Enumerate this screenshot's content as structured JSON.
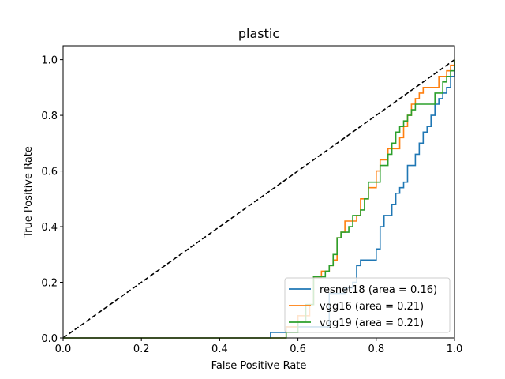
{
  "chart_data": {
    "type": "line",
    "title": "plastic",
    "xlabel": "False Positive Rate",
    "ylabel": "True Positive Rate",
    "xlim": [
      0.0,
      1.0
    ],
    "ylim": [
      0.0,
      1.05
    ],
    "xticks": [
      "0.0",
      "0.2",
      "0.4",
      "0.6",
      "0.8",
      "1.0"
    ],
    "yticks": [
      "0.0",
      "0.2",
      "0.4",
      "0.6",
      "0.8",
      "1.0"
    ],
    "legend_position": "bottom-right",
    "grid": false,
    "diagonal": {
      "x": [
        0,
        1
      ],
      "y": [
        0,
        1
      ],
      "color": "#000000",
      "style": "dashed"
    },
    "series": [
      {
        "name": "resnet18 (area = 0.16)",
        "color": "#1f77b4",
        "x": [
          0,
          0.53,
          0.53,
          0.57,
          0.57,
          0.68,
          0.68,
          0.72,
          0.72,
          0.74,
          0.74,
          0.75,
          0.75,
          0.76,
          0.76,
          0.8,
          0.8,
          0.81,
          0.81,
          0.82,
          0.82,
          0.84,
          0.84,
          0.85,
          0.85,
          0.86,
          0.86,
          0.87,
          0.87,
          0.88,
          0.88,
          0.9,
          0.9,
          0.91,
          0.91,
          0.92,
          0.92,
          0.93,
          0.93,
          0.94,
          0.94,
          0.95,
          0.95,
          0.96,
          0.96,
          0.97,
          0.97,
          0.98,
          0.98,
          0.99,
          0.99,
          1.0,
          1.0
        ],
        "y": [
          0,
          0,
          0.02,
          0.02,
          0.04,
          0.04,
          0.16,
          0.16,
          0.18,
          0.18,
          0.2,
          0.2,
          0.26,
          0.26,
          0.28,
          0.28,
          0.32,
          0.32,
          0.4,
          0.4,
          0.44,
          0.44,
          0.48,
          0.48,
          0.52,
          0.52,
          0.54,
          0.54,
          0.56,
          0.56,
          0.62,
          0.62,
          0.66,
          0.66,
          0.7,
          0.7,
          0.74,
          0.74,
          0.76,
          0.76,
          0.8,
          0.8,
          0.84,
          0.84,
          0.86,
          0.86,
          0.88,
          0.88,
          0.9,
          0.9,
          0.94,
          0.94,
          1.0
        ]
      },
      {
        "name": "vgg16 (area = 0.21)",
        "color": "#ff7f0e",
        "x": [
          0,
          0.57,
          0.57,
          0.6,
          0.6,
          0.63,
          0.63,
          0.64,
          0.64,
          0.66,
          0.66,
          0.68,
          0.68,
          0.69,
          0.69,
          0.7,
          0.7,
          0.71,
          0.71,
          0.72,
          0.72,
          0.75,
          0.75,
          0.76,
          0.76,
          0.78,
          0.78,
          0.8,
          0.8,
          0.81,
          0.81,
          0.83,
          0.83,
          0.86,
          0.86,
          0.87,
          0.87,
          0.88,
          0.88,
          0.89,
          0.89,
          0.9,
          0.9,
          0.91,
          0.91,
          0.92,
          0.92,
          0.96,
          0.96,
          0.98,
          0.98,
          0.99,
          0.99,
          1.0,
          1.0
        ],
        "y": [
          0,
          0,
          0.04,
          0.04,
          0.08,
          0.08,
          0.12,
          0.12,
          0.22,
          0.22,
          0.24,
          0.24,
          0.26,
          0.26,
          0.28,
          0.28,
          0.36,
          0.36,
          0.38,
          0.38,
          0.42,
          0.42,
          0.44,
          0.44,
          0.5,
          0.5,
          0.54,
          0.54,
          0.6,
          0.6,
          0.64,
          0.64,
          0.68,
          0.68,
          0.72,
          0.72,
          0.76,
          0.76,
          0.8,
          0.8,
          0.84,
          0.84,
          0.86,
          0.86,
          0.88,
          0.88,
          0.9,
          0.9,
          0.94,
          0.94,
          0.96,
          0.96,
          0.98,
          0.98,
          1.0
        ]
      },
      {
        "name": "vgg19 (area = 0.21)",
        "color": "#2ca02c",
        "x": [
          0,
          0.57,
          0.57,
          0.6,
          0.6,
          0.62,
          0.62,
          0.64,
          0.64,
          0.67,
          0.67,
          0.68,
          0.68,
          0.69,
          0.69,
          0.7,
          0.7,
          0.71,
          0.71,
          0.73,
          0.73,
          0.74,
          0.74,
          0.76,
          0.76,
          0.77,
          0.77,
          0.78,
          0.78,
          0.81,
          0.81,
          0.83,
          0.83,
          0.84,
          0.84,
          0.85,
          0.85,
          0.86,
          0.86,
          0.87,
          0.87,
          0.88,
          0.88,
          0.89,
          0.89,
          0.9,
          0.9,
          0.95,
          0.95,
          0.97,
          0.97,
          0.98,
          0.98,
          0.99,
          0.99,
          1.0,
          1.0
        ],
        "y": [
          0,
          0,
          0.02,
          0.02,
          0.06,
          0.06,
          0.12,
          0.12,
          0.22,
          0.22,
          0.24,
          0.24,
          0.26,
          0.26,
          0.3,
          0.3,
          0.36,
          0.36,
          0.38,
          0.38,
          0.4,
          0.4,
          0.44,
          0.44,
          0.46,
          0.46,
          0.5,
          0.5,
          0.56,
          0.56,
          0.62,
          0.62,
          0.66,
          0.66,
          0.7,
          0.7,
          0.74,
          0.74,
          0.76,
          0.76,
          0.78,
          0.78,
          0.8,
          0.8,
          0.82,
          0.82,
          0.84,
          0.84,
          0.88,
          0.88,
          0.92,
          0.92,
          0.94,
          0.94,
          0.96,
          0.96,
          1.0
        ]
      }
    ]
  }
}
